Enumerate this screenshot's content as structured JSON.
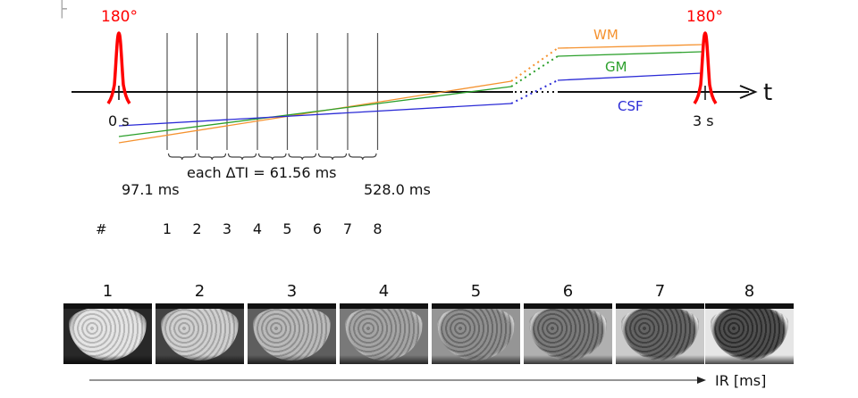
{
  "corner_glyph": "├",
  "pulses": [
    {
      "label": "180°",
      "time_label": "0 s"
    },
    {
      "label": "180°",
      "time_label": "3 s"
    }
  ],
  "axis": {
    "label": "t"
  },
  "tissues": [
    {
      "name": "WM",
      "color": "#f5922f"
    },
    {
      "name": "GM",
      "color": "#2ca02c"
    },
    {
      "name": "CSF",
      "color": "#2b2bd6"
    }
  ],
  "pulse_color": "#ff0000",
  "interval": {
    "label": "each ΔTI = 61.56 ms",
    "first_ti": "97.1 ms",
    "last_ti": "528.0 ms"
  },
  "index_row": {
    "header": "#",
    "numbers": [
      "1",
      "2",
      "3",
      "4",
      "5",
      "6",
      "7",
      "8"
    ]
  },
  "images": {
    "labels": [
      "1",
      "2",
      "3",
      "4",
      "5",
      "6",
      "7",
      "8"
    ],
    "axis_label": "IR [ms]"
  }
}
